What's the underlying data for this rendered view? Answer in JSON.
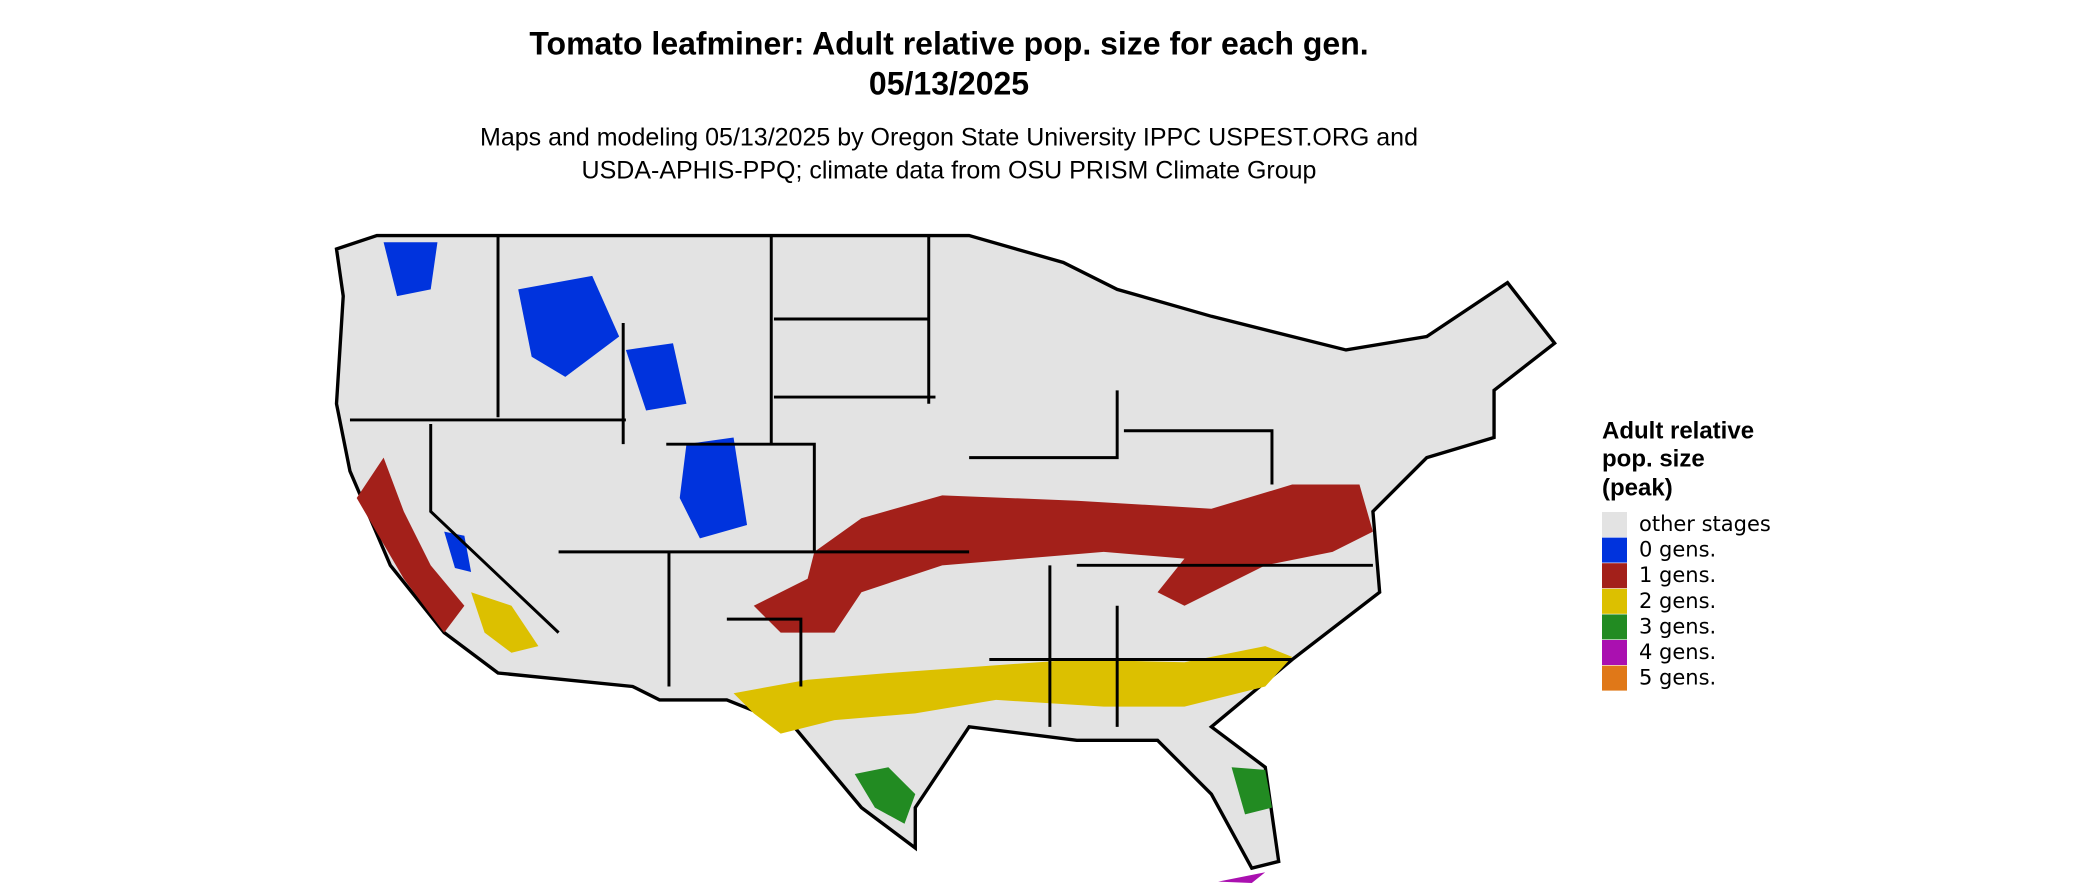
{
  "header": {
    "title": "Tomato leafminer: Adult relative pop. size for each gen.",
    "date": "05/13/2025",
    "subtitle_lines": [
      "Maps and modeling 05/13/2025 by Oregon State University IPPC USPEST.ORG and",
      "USDA-APHIS-PPQ; climate data from OSU PRISM Climate Group"
    ]
  },
  "legend": {
    "title_lines": [
      "Adult relative",
      "pop. size",
      "(peak)"
    ],
    "items": [
      {
        "label": "other stages",
        "color": "#e3e3e3"
      },
      {
        "label": "0 gens.",
        "color": "#0033dd"
      },
      {
        "label": "1 gens.",
        "color": "#a3201a"
      },
      {
        "label": "2 gens.",
        "color": "#dcc000"
      },
      {
        "label": "3 gens.",
        "color": "#228b22"
      },
      {
        "label": "4 gens.",
        "color": "#aa10b0"
      },
      {
        "label": "5 gens.",
        "color": "#e07818"
      }
    ]
  }
}
